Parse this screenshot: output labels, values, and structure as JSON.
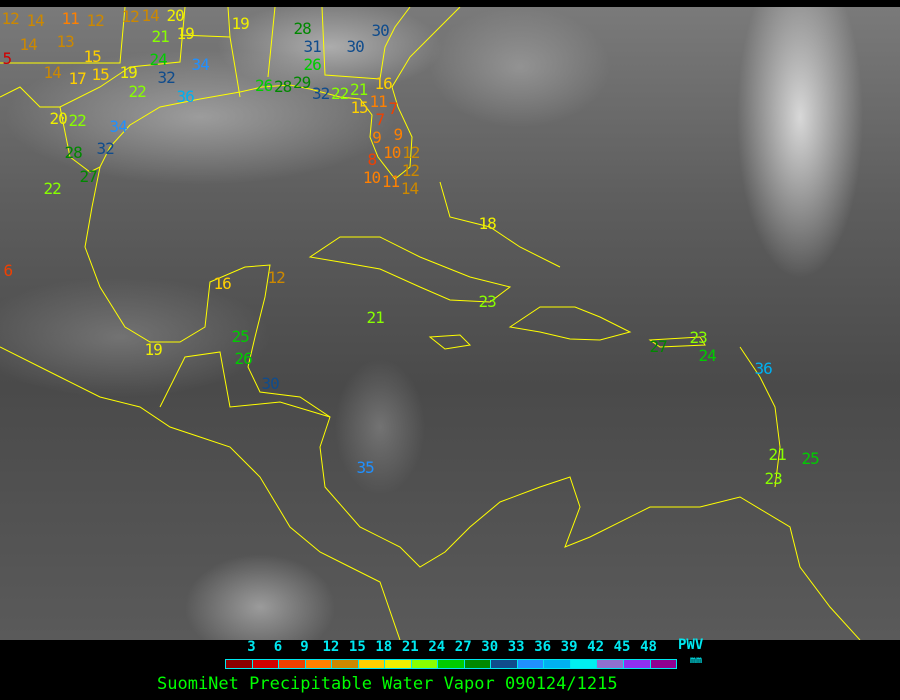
{
  "title": "SuomiNet Precipitable Water Vapor 090124/1215",
  "legend": {
    "unit_label": "PWV",
    "unit_sub": "mm",
    "ticks": [
      "3",
      "6",
      "9",
      "12",
      "15",
      "18",
      "21",
      "24",
      "27",
      "30",
      "33",
      "36",
      "39",
      "42",
      "45",
      "48"
    ],
    "colors": [
      "#8b0000",
      "#d00000",
      "#f04000",
      "#ff8000",
      "#cc8800",
      "#ffd000",
      "#f0f000",
      "#88ff00",
      "#00cc00",
      "#008800",
      "#104c8c",
      "#2090ff",
      "#00b0f0",
      "#00f0f0",
      "#9070d0",
      "#9030f0",
      "#900090"
    ]
  },
  "map": {
    "coastline_color": "#ffff00"
  },
  "stations": [
    {
      "value": "12"
    },
    {
      "value": "14"
    },
    {
      "value": "11"
    },
    {
      "value": "12"
    },
    {
      "value": "12"
    },
    {
      "value": "14"
    },
    {
      "value": "20"
    },
    {
      "value": "21"
    },
    {
      "value": "19"
    },
    {
      "value": "19"
    },
    {
      "value": "14"
    },
    {
      "value": "13"
    },
    {
      "value": "5"
    },
    {
      "value": "15"
    },
    {
      "value": "14"
    },
    {
      "value": "17"
    },
    {
      "value": "15"
    },
    {
      "value": "19"
    },
    {
      "value": "24"
    },
    {
      "value": "32"
    },
    {
      "value": "34"
    },
    {
      "value": "22"
    },
    {
      "value": "36"
    },
    {
      "value": "20"
    },
    {
      "value": "22"
    },
    {
      "value": "34"
    },
    {
      "value": "32"
    },
    {
      "value": "28"
    },
    {
      "value": "27"
    },
    {
      "value": "22"
    },
    {
      "value": "6"
    },
    {
      "value": "28"
    },
    {
      "value": "31"
    },
    {
      "value": "30"
    },
    {
      "value": "30"
    },
    {
      "value": "26"
    },
    {
      "value": "26"
    },
    {
      "value": "28"
    },
    {
      "value": "29"
    },
    {
      "value": "32"
    },
    {
      "value": "22"
    },
    {
      "value": "21"
    },
    {
      "value": "15"
    },
    {
      "value": "16"
    },
    {
      "value": "11"
    },
    {
      "value": "7"
    },
    {
      "value": "7"
    },
    {
      "value": "9"
    },
    {
      "value": "9"
    },
    {
      "value": "10"
    },
    {
      "value": "12"
    },
    {
      "value": "8"
    },
    {
      "value": "10"
    },
    {
      "value": "11"
    },
    {
      "value": "14"
    },
    {
      "value": "12"
    },
    {
      "value": "16"
    },
    {
      "value": "12"
    },
    {
      "value": "18"
    },
    {
      "value": "21"
    },
    {
      "value": "23"
    },
    {
      "value": "19"
    },
    {
      "value": "25"
    },
    {
      "value": "26"
    },
    {
      "value": "30"
    },
    {
      "value": "35"
    },
    {
      "value": "27"
    },
    {
      "value": "23"
    },
    {
      "value": "24"
    },
    {
      "value": "36"
    },
    {
      "value": "21"
    },
    {
      "value": "25"
    },
    {
      "value": "23"
    }
  ]
}
